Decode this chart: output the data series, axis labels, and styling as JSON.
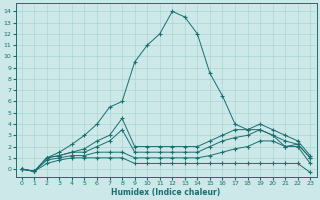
{
  "xlabel": "Humidex (Indice chaleur)",
  "bg_color": "#cce8e8",
  "grid_color": "#aad4d4",
  "line_color": "#1a6e6e",
  "xlim": [
    -0.5,
    23.5
  ],
  "ylim": [
    -0.7,
    14.7
  ],
  "xticks": [
    0,
    1,
    2,
    3,
    4,
    5,
    6,
    7,
    8,
    9,
    10,
    11,
    12,
    13,
    14,
    15,
    16,
    17,
    18,
    19,
    20,
    21,
    22,
    23
  ],
  "yticks": [
    0,
    1,
    2,
    3,
    4,
    5,
    6,
    7,
    8,
    9,
    10,
    11,
    12,
    13,
    14
  ],
  "lines": [
    [
      0,
      1,
      2,
      3,
      4,
      5,
      6,
      7,
      8,
      9,
      10,
      11,
      12,
      13,
      14,
      15,
      16,
      17,
      18,
      19,
      20,
      21,
      22,
      23
    ],
    [
      0,
      -0.2,
      1.0,
      1.5,
      2.2,
      3.0,
      4.0,
      5.5,
      6.0,
      9.5,
      11.0,
      12.0,
      14.0,
      13.5,
      12.0,
      8.5,
      6.5,
      4.0,
      3.5,
      3.5,
      3.0,
      2.0,
      2.2,
      1.0
    ],
    [
      0,
      -0.2,
      1.0,
      1.2,
      1.5,
      1.8,
      2.5,
      3.0,
      4.5,
      2.0,
      2.0,
      2.0,
      2.0,
      2.0,
      2.0,
      2.5,
      3.0,
      3.5,
      3.5,
      4.0,
      3.5,
      3.0,
      2.5,
      1.2
    ],
    [
      0,
      -0.2,
      1.0,
      1.2,
      1.5,
      1.5,
      2.0,
      2.5,
      3.5,
      1.5,
      1.5,
      1.5,
      1.5,
      1.5,
      1.5,
      2.0,
      2.5,
      2.8,
      3.0,
      3.5,
      3.0,
      2.5,
      2.2,
      1.0
    ],
    [
      0,
      -0.2,
      0.8,
      1.0,
      1.2,
      1.2,
      1.5,
      1.5,
      1.5,
      1.0,
      1.0,
      1.0,
      1.0,
      1.0,
      1.0,
      1.2,
      1.5,
      1.8,
      2.0,
      2.5,
      2.5,
      2.0,
      2.0,
      0.5
    ],
    [
      0,
      -0.2,
      0.5,
      0.8,
      1.0,
      1.0,
      1.0,
      1.0,
      1.0,
      0.5,
      0.5,
      0.5,
      0.5,
      0.5,
      0.5,
      0.5,
      0.5,
      0.5,
      0.5,
      0.5,
      0.5,
      0.5,
      0.5,
      -0.3
    ]
  ]
}
